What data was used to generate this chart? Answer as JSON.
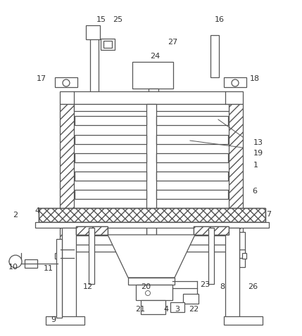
{
  "background_color": "#ffffff",
  "line_color": "#555555",
  "label_color": "#333333",
  "label_fontsize": 8.0,
  "fig_w": 4.29,
  "fig_h": 4.78,
  "dpi": 100
}
